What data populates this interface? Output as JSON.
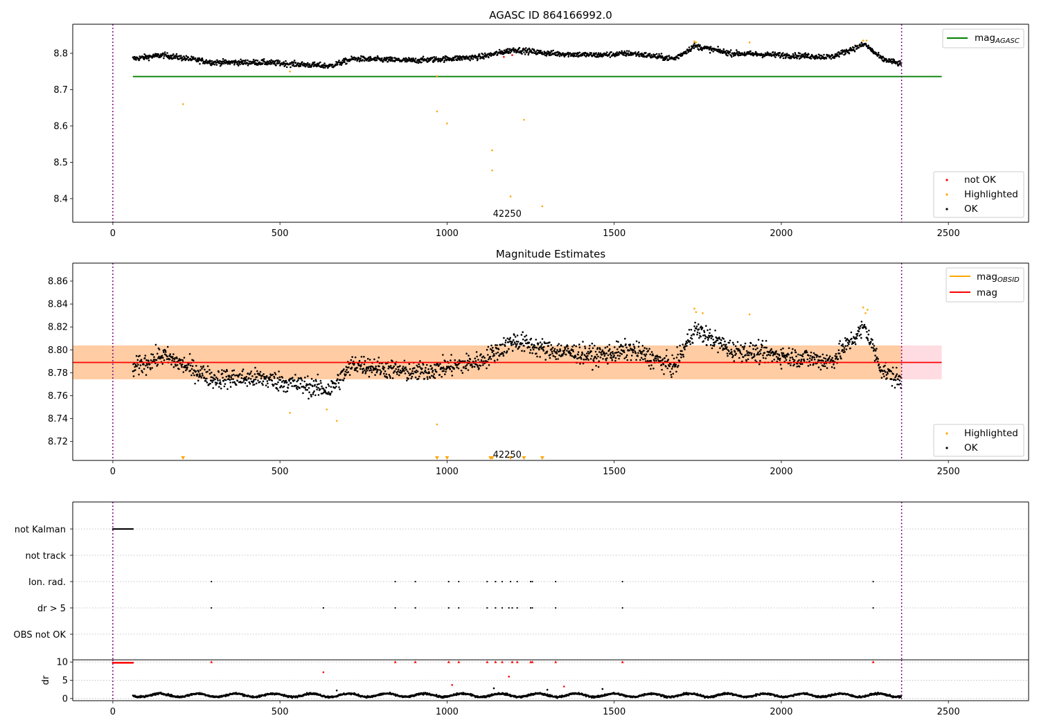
{
  "chart_data": [
    {
      "type": "scatter",
      "title": "AGASC ID 864166992.0",
      "xlim": [
        -120,
        2740
      ],
      "ylim": [
        8.335,
        8.88
      ],
      "xticks": [
        0,
        500,
        1000,
        1500,
        2000,
        2500
      ],
      "yticks": [
        8.4,
        8.5,
        8.6,
        8.7,
        8.8
      ],
      "ytick_labels": [
        "8.4",
        "8.5",
        "8.6",
        "8.7",
        "8.8"
      ],
      "mag_agasc": 8.736,
      "vlines": [
        0,
        2360
      ],
      "annotation": {
        "text": "42250",
        "x": 1180,
        "y": 8.36
      },
      "highlighted_points": [
        [
          210,
          8.66
        ],
        [
          530,
          8.75
        ],
        [
          970,
          8.737
        ],
        [
          970,
          8.64
        ],
        [
          1000,
          8.607
        ],
        [
          1135,
          8.533
        ],
        [
          1135,
          8.478
        ],
        [
          1190,
          8.406
        ],
        [
          1230,
          8.617
        ],
        [
          1285,
          8.379
        ],
        [
          1740,
          8.833
        ],
        [
          1745,
          8.83
        ],
        [
          1905,
          8.83
        ],
        [
          2245,
          8.835
        ],
        [
          2255,
          8.835
        ]
      ],
      "not_ok_points": [
        [
          1170,
          8.79
        ],
        [
          1195,
          8.795
        ]
      ],
      "ok_series": {
        "x_start": 60,
        "x_end": 2360,
        "baseline": 8.78,
        "trend": [
          [
            60,
            8.785
          ],
          [
            150,
            8.795
          ],
          [
            300,
            8.775
          ],
          [
            450,
            8.775
          ],
          [
            550,
            8.77
          ],
          [
            650,
            8.765
          ],
          [
            720,
            8.785
          ],
          [
            900,
            8.78
          ],
          [
            1000,
            8.785
          ],
          [
            1100,
            8.79
          ],
          [
            1200,
            8.81
          ],
          [
            1300,
            8.8
          ],
          [
            1450,
            8.795
          ],
          [
            1550,
            8.8
          ],
          [
            1680,
            8.785
          ],
          [
            1740,
            8.82
          ],
          [
            1850,
            8.8
          ],
          [
            2000,
            8.795
          ],
          [
            2150,
            8.79
          ],
          [
            2250,
            8.825
          ],
          [
            2300,
            8.785
          ],
          [
            2360,
            8.77
          ]
        ]
      },
      "legend_line": {
        "label": "mag",
        "sub": "AGASC"
      },
      "legend_points": [
        "not OK",
        "Highlighted",
        "OK"
      ]
    },
    {
      "type": "scatter",
      "title": "Magnitude Estimates",
      "xlim": [
        -120,
        2740
      ],
      "ylim": [
        8.7035,
        8.8757
      ],
      "xticks": [
        0,
        500,
        1000,
        1500,
        2000,
        2500
      ],
      "yticks": [
        8.72,
        8.74,
        8.76,
        8.78,
        8.8,
        8.82,
        8.84,
        8.86
      ],
      "ytick_labels": [
        "8.72",
        "8.74",
        "8.76",
        "8.78",
        "8.80",
        "8.82",
        "8.84",
        "8.86"
      ],
      "mag": 8.789,
      "mag_band": [
        8.7743,
        8.8038
      ],
      "obsid_band": {
        "x_start": -120,
        "x_end": 2480
      },
      "vlines": [
        0,
        2360
      ],
      "annotation": {
        "text": "42250",
        "x": 1180,
        "y": 8.709
      },
      "highlighted_points": [
        [
          530,
          8.745
        ],
        [
          640,
          8.748
        ],
        [
          670,
          8.738
        ],
        [
          970,
          8.735
        ],
        [
          1740,
          8.836
        ],
        [
          1745,
          8.833
        ],
        [
          1765,
          8.832
        ],
        [
          1905,
          8.831
        ],
        [
          2245,
          8.837
        ],
        [
          2252,
          8.832
        ],
        [
          2258,
          8.835
        ]
      ],
      "off_scale_markers": [
        210,
        970,
        1000,
        1130,
        1135,
        1190,
        1230,
        1285
      ],
      "ok_series": {
        "x_start": 60,
        "x_end": 2360,
        "trend": [
          [
            60,
            8.784
          ],
          [
            150,
            8.795
          ],
          [
            300,
            8.775
          ],
          [
            450,
            8.775
          ],
          [
            550,
            8.77
          ],
          [
            650,
            8.765
          ],
          [
            720,
            8.788
          ],
          [
            900,
            8.78
          ],
          [
            1000,
            8.785
          ],
          [
            1100,
            8.79
          ],
          [
            1200,
            8.808
          ],
          [
            1300,
            8.8
          ],
          [
            1450,
            8.795
          ],
          [
            1550,
            8.8
          ],
          [
            1680,
            8.785
          ],
          [
            1740,
            8.818
          ],
          [
            1850,
            8.8
          ],
          [
            2000,
            8.795
          ],
          [
            2150,
            8.79
          ],
          [
            2250,
            8.82
          ],
          [
            2300,
            8.783
          ],
          [
            2360,
            8.772
          ]
        ]
      },
      "legend_lines": [
        {
          "label": "mag",
          "sub": "OBSID",
          "color": "#ffa500"
        },
        {
          "label": "mag",
          "sub": "",
          "color": "#ff0000"
        }
      ],
      "legend_points": [
        "Highlighted",
        "OK"
      ]
    },
    {
      "type": "scatter",
      "title": "",
      "xlim": [
        -120,
        2740
      ],
      "xticks": [
        0,
        500,
        1000,
        1500,
        2000,
        2500
      ],
      "categories": [
        "not Kalman",
        "not track",
        "Ion. rad.",
        "dr > 5",
        "OBS not OK"
      ],
      "flags": {
        "not Kalman": {
          "x_start": 0,
          "x_end": 60
        },
        "not track": [],
        "Ion. rad.": [
          295,
          845,
          905,
          1005,
          1035,
          1120,
          1145,
          1165,
          1190,
          1210,
          1250,
          1255,
          1325,
          1525,
          2275
        ],
        "dr > 5": [
          295,
          630,
          845,
          905,
          1005,
          1035,
          1120,
          1145,
          1165,
          1185,
          1195,
          1210,
          1250,
          1255,
          1325,
          1525,
          2275
        ],
        "OBS not OK": []
      },
      "vlines": [
        0,
        2360
      ]
    },
    {
      "type": "scatter",
      "title": "",
      "xlim": [
        -120,
        2740
      ],
      "ylim": [
        -0.6,
        10.6
      ],
      "ylabel": "dr",
      "xticks": [
        0,
        500,
        1000,
        1500,
        2000,
        2500
      ],
      "yticks": [
        0,
        5,
        10
      ],
      "ytick_labels": [
        "0",
        "5",
        "10"
      ],
      "clip_value": 10,
      "red_points": [
        [
          295,
          10
        ],
        [
          630,
          7.2
        ],
        [
          845,
          10
        ],
        [
          905,
          10
        ],
        [
          1005,
          10
        ],
        [
          1015,
          3.7
        ],
        [
          1035,
          10
        ],
        [
          1120,
          10
        ],
        [
          1145,
          10
        ],
        [
          1165,
          10
        ],
        [
          1185,
          6
        ],
        [
          1195,
          10
        ],
        [
          1210,
          10
        ],
        [
          1250,
          10
        ],
        [
          1255,
          10
        ],
        [
          1325,
          10
        ],
        [
          1350,
          3.3
        ],
        [
          1525,
          10
        ],
        [
          2275,
          10
        ]
      ],
      "red_run": {
        "x_start": 0,
        "x_end": 60,
        "y": 9.8
      },
      "black_series": {
        "x_start": 60,
        "x_end": 2360,
        "mean": 0.9
      },
      "black_outliers": [
        [
          670,
          2.2
        ],
        [
          1140,
          2.8
        ],
        [
          1300,
          2.4
        ],
        [
          1465,
          2.6
        ]
      ],
      "vlines": [
        0,
        2360
      ]
    }
  ]
}
